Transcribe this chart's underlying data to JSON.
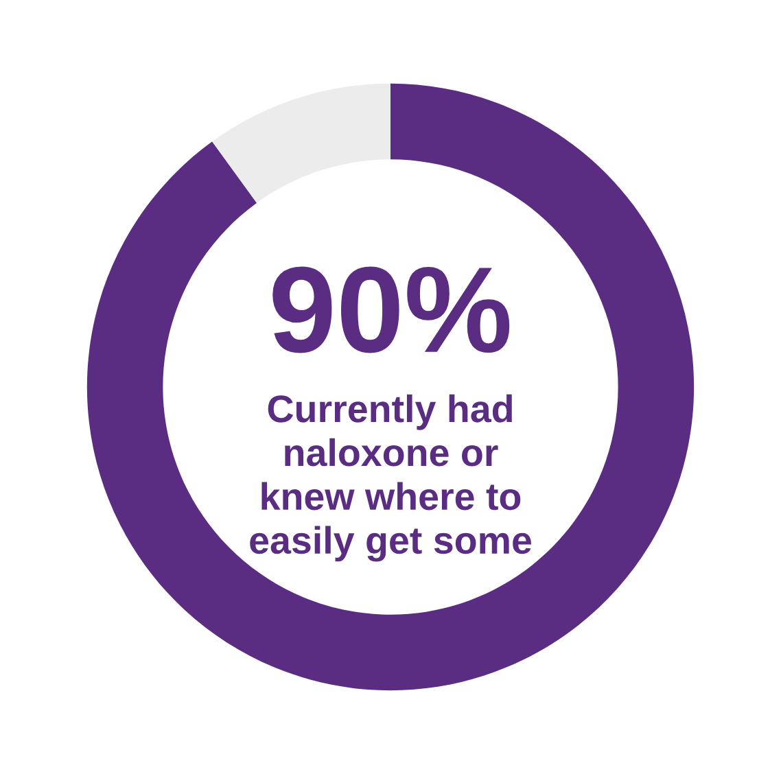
{
  "chart_data": {
    "type": "donut",
    "categories": [
      null,
      null
    ],
    "values": [
      90,
      10
    ],
    "colors": [
      "#5a2d82",
      "#ececec"
    ],
    "annotations": [
      "90%",
      "Currently had\nnaloxone or\nknew where to\neasily get some"
    ]
  }
}
